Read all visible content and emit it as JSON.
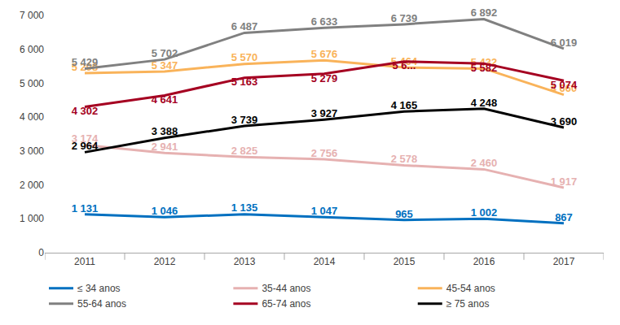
{
  "chart_data": {
    "type": "line",
    "categories": [
      "2011",
      "2012",
      "2013",
      "2014",
      "2015",
      "2016",
      "2017"
    ],
    "series": [
      {
        "name": "≤ 34 anos",
        "color": "#0070c0",
        "values": [
          1131,
          1046,
          1135,
          1047,
          965,
          1002,
          867
        ],
        "value_labels": [
          "1 131",
          "1 046",
          "1 135",
          "1 047",
          "965",
          "1 002",
          "867"
        ]
      },
      {
        "name": "35-44 anos",
        "color": "#e6b1b1",
        "values": [
          3174,
          2941,
          2825,
          2756,
          2578,
          2460,
          1917
        ],
        "value_labels": [
          "3 174",
          "2 941",
          "2 825",
          "2 756",
          "2 578",
          "2 460",
          "1 917"
        ]
      },
      {
        "name": "45-54 anos",
        "color": "#f9b35a",
        "values": [
          5298,
          5347,
          5570,
          5676,
          5464,
          5432,
          4660
        ],
        "value_labels": [
          "5 298",
          "5 347",
          "5 570",
          "5 676",
          "5 464",
          "5 432",
          "4 660"
        ]
      },
      {
        "name": "55-64 anos",
        "color": "#808080",
        "values": [
          5429,
          5702,
          6487,
          6633,
          6739,
          6892,
          6019
        ],
        "value_labels": [
          "5 429",
          "5 702",
          "6 487",
          "6 633",
          "6 739",
          "6 892",
          "6 019"
        ]
      },
      {
        "name": "65-74 anos",
        "color": "#a50021",
        "values": [
          4302,
          4641,
          5163,
          5279,
          5640,
          5582,
          5074
        ],
        "value_labels": [
          "4 302",
          "4 641",
          "5 163",
          "5 279",
          "5 6...",
          "5 582",
          "5 074"
        ]
      },
      {
        "name": "≥ 75 anos",
        "color": "#000000",
        "values": [
          2964,
          3388,
          3739,
          3927,
          4165,
          4248,
          3690
        ],
        "value_labels": [
          "2 964",
          "3 388",
          "3 739",
          "3 927",
          "4 165",
          "4 248",
          "3 690"
        ]
      }
    ],
    "ylim": [
      0,
      7000
    ],
    "yticks": [
      0,
      {
        "value": 1000,
        "label": "1 000"
      },
      {
        "value": 2000,
        "label": "2 000"
      },
      {
        "value": 3000,
        "label": "3 000"
      },
      {
        "value": 4000,
        "label": "4 000"
      },
      {
        "value": 5000,
        "label": "5 000"
      },
      {
        "value": 6000,
        "label": "6 000"
      },
      {
        "value": 7000,
        "label": "7 000"
      }
    ],
    "grid": false,
    "legend": "bottom",
    "data_labels": true
  }
}
